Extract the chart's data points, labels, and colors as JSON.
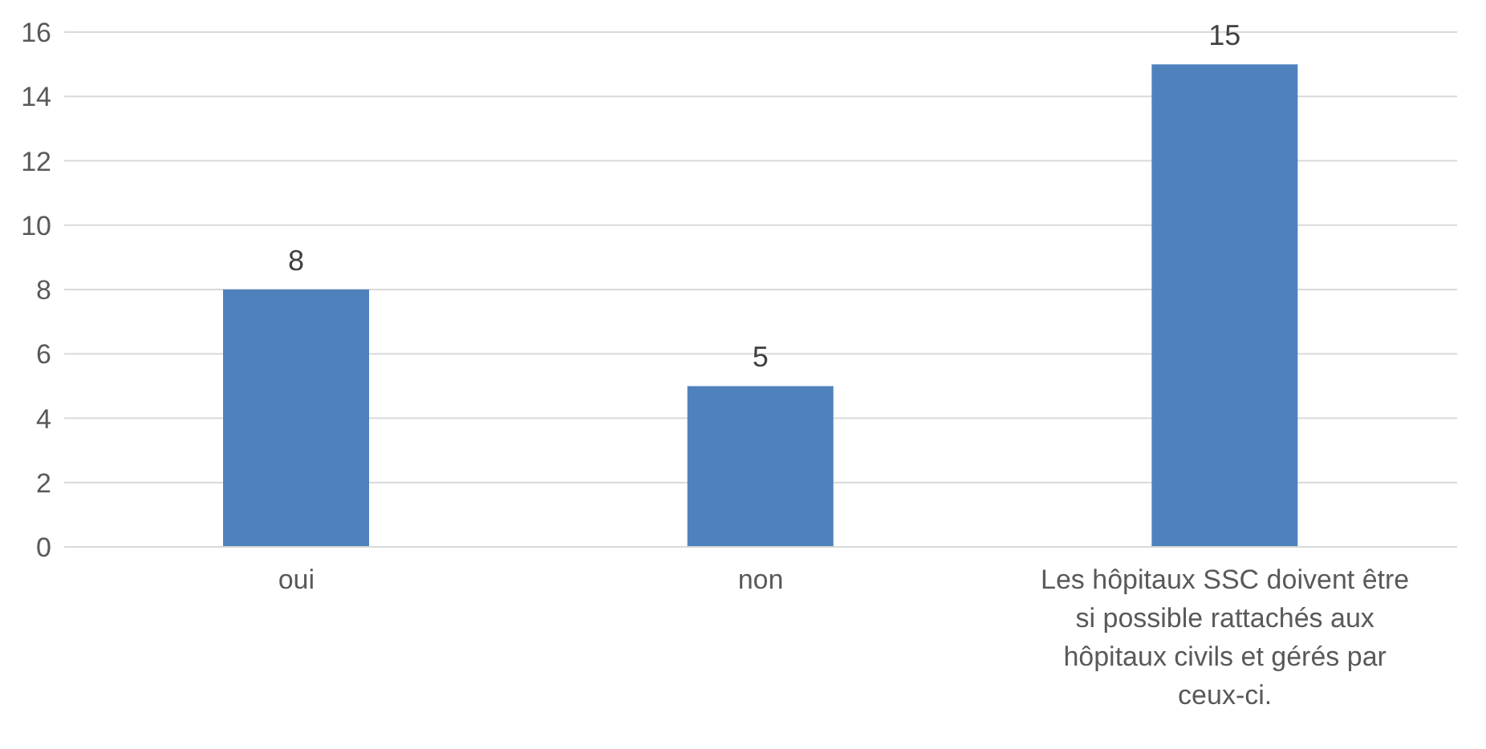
{
  "chart_data": {
    "type": "bar",
    "categories": [
      "oui",
      "non",
      "Les hôpitaux SSC doivent être si possible rattachés aux hôpitaux civils et gérés par ceux-ci."
    ],
    "values": [
      8,
      5,
      15
    ],
    "color": "#4f81bd",
    "ylim": [
      0,
      16
    ],
    "yticks": [
      0,
      2,
      4,
      6,
      8,
      10,
      12,
      14,
      16
    ],
    "grid": "y",
    "data_labels": true
  }
}
